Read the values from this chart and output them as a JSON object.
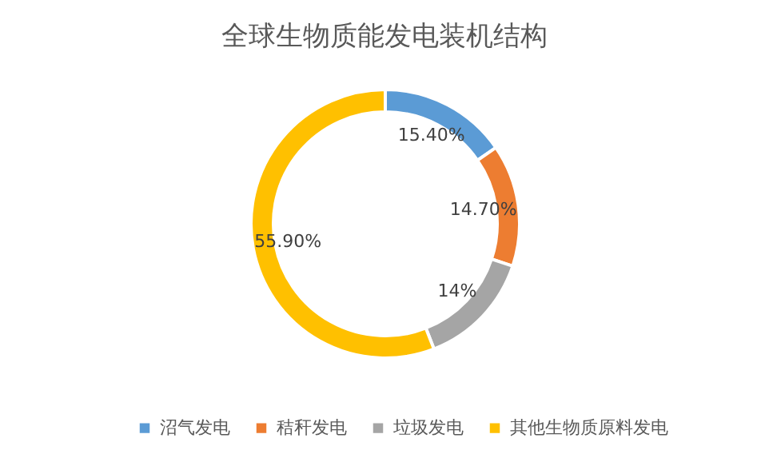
{
  "chart_data": {
    "type": "donut",
    "title": "全球生物质能发电装机结构",
    "categories": [
      "沼气发电",
      "秸秆发电",
      "垃圾发电",
      "其他生物质原料发电"
    ],
    "values": [
      15.4,
      14.7,
      14,
      55.9
    ],
    "value_labels": [
      "15.40%",
      "14.70%",
      "14%",
      "55.90%"
    ],
    "colors": [
      "#5b9bd5",
      "#ed7d31",
      "#a5a5a5",
      "#ffc000"
    ],
    "legend": "bottom"
  }
}
